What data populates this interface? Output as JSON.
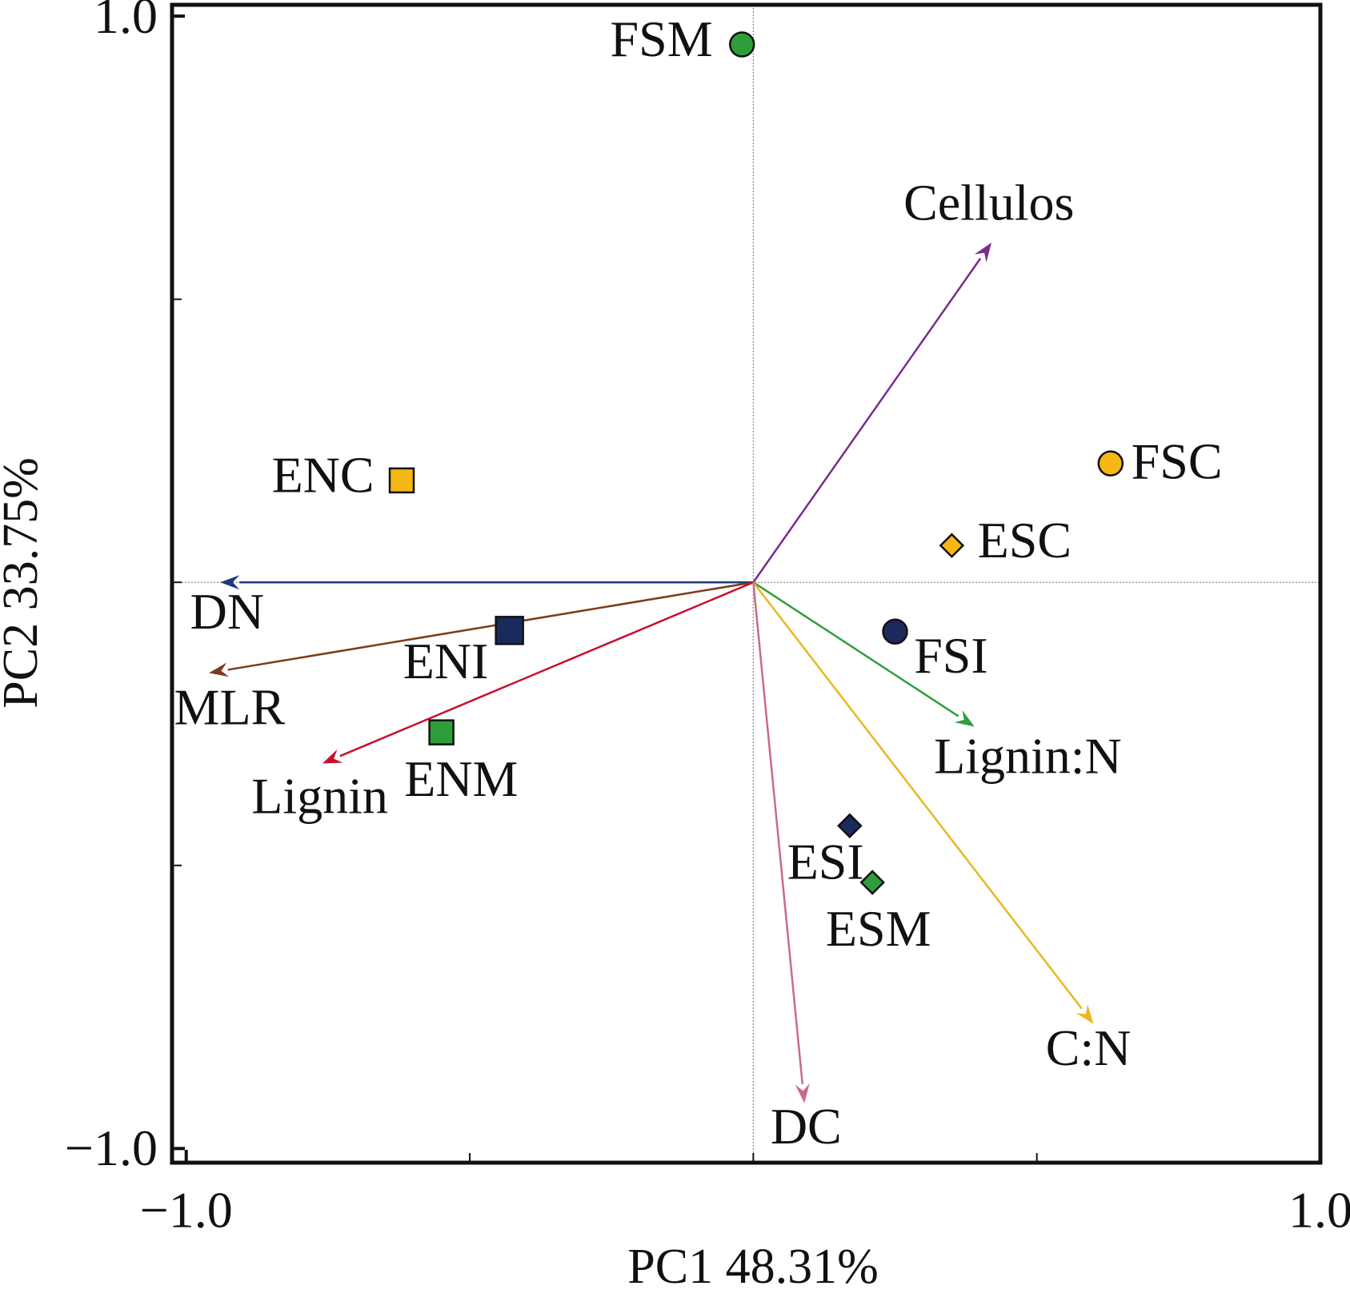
{
  "chart_data": {
    "type": "biplot",
    "x_label": "PC1 48.31%",
    "y_label": "PC2 33.75%",
    "xlim": [
      -1.025,
      1.0
    ],
    "ylim": [
      -1.025,
      1.02
    ],
    "xticks": [
      {
        "value": -1.0,
        "label": "−1.0"
      },
      {
        "value": 1.0,
        "label": "1.0"
      }
    ],
    "yticks": [
      {
        "value": 1.0,
        "label": "1.0"
      },
      {
        "value": -1.0,
        "label": "−1.0"
      }
    ],
    "xminor_ticks": [
      -0.5,
      0,
      0.5
    ],
    "yminor_ticks": [
      0.5,
      0,
      -0.5
    ],
    "zero_lines": true,
    "points": [
      {
        "name": "FSM",
        "x": -0.02,
        "y": 0.95,
        "marker": "circle",
        "color": "#2e9e3a"
      },
      {
        "name": "ENC",
        "x": -0.62,
        "y": 0.18,
        "marker": "square",
        "color": "#f5b716"
      },
      {
        "name": "ENI",
        "x": -0.43,
        "y": -0.085,
        "marker": "square",
        "color": "#1a2a5c"
      },
      {
        "name": "ENM",
        "x": -0.55,
        "y": -0.265,
        "marker": "square",
        "color": "#2e9e3a"
      },
      {
        "name": "FSC",
        "x": 0.63,
        "y": 0.21,
        "marker": "circle",
        "color": "#f5b716"
      },
      {
        "name": "ESC",
        "x": 0.35,
        "y": 0.065,
        "marker": "diamond",
        "color": "#f5b716"
      },
      {
        "name": "FSI",
        "x": 0.25,
        "y": -0.087,
        "marker": "circle",
        "color": "#1a2a5c"
      },
      {
        "name": "ESI",
        "x": 0.17,
        "y": -0.43,
        "marker": "diamond",
        "color": "#1a2a5c"
      },
      {
        "name": "ESM",
        "x": 0.21,
        "y": -0.53,
        "marker": "diamond",
        "color": "#2e9e3a"
      }
    ],
    "vectors": [
      {
        "name": "Cellulos",
        "x": 0.42,
        "y": 0.6,
        "color": "#7b2b8f"
      },
      {
        "name": "DN",
        "x": -0.94,
        "y": 0,
        "color": "#1f3a7a"
      },
      {
        "name": "MLR",
        "x": -0.96,
        "y": -0.16,
        "color": "#7a3b1a"
      },
      {
        "name": "Lignin",
        "x": -0.76,
        "y": -0.32,
        "color": "#c8102e"
      },
      {
        "name": "Lignin:N",
        "x": 0.39,
        "y": -0.255,
        "color": "#2e9e3a"
      },
      {
        "name": "C:N",
        "x": 0.6,
        "y": -0.78,
        "color": "#e8b820"
      },
      {
        "name": "DC",
        "x": 0.09,
        "y": -0.92,
        "color": "#c96a8a"
      }
    ]
  }
}
